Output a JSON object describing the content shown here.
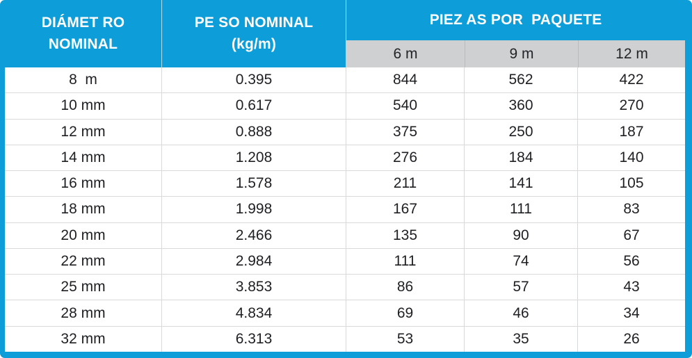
{
  "colors": {
    "accent_blue": "#0D9DD9",
    "subheader_gray": "#CFD0D1",
    "grid_line": "#D8D9DA",
    "header_text": "#FFFFFF",
    "body_text": "#1E1F23",
    "row_background": "#FFFFFF"
  },
  "table": {
    "header": {
      "diameter": "DIÁMET RO\nNOMINAL",
      "weight": "PE SO NOMINAL\n(kg/m)",
      "pieces": "PIEZ AS POR  PAQUETE",
      "lengths": [
        "6 m",
        "9 m",
        "12 m"
      ]
    },
    "rows": [
      [
        "8  m",
        "0.395",
        "844",
        "562",
        "422"
      ],
      [
        "10 mm",
        "0.617",
        "540",
        "360",
        "270"
      ],
      [
        "12 mm",
        "0.888",
        "375",
        "250",
        "187"
      ],
      [
        "14 mm",
        "1.208",
        "276",
        "184",
        "140"
      ],
      [
        "16 mm",
        "1.578",
        "211",
        "141",
        "105"
      ],
      [
        "18 mm",
        "1.998",
        "167",
        "111",
        "83"
      ],
      [
        "20 mm",
        "2.466",
        "135",
        "90",
        "67"
      ],
      [
        "22 mm",
        "2.984",
        "111",
        "74",
        "56"
      ],
      [
        "25 mm",
        "3.853",
        "86",
        "57",
        "43"
      ],
      [
        "28 mm",
        "4.834",
        "69",
        "46",
        "34"
      ],
      [
        "32 mm",
        "6.313",
        "53",
        "35",
        "26"
      ]
    ]
  },
  "chart_data": {
    "type": "table",
    "columns": [
      "DIÁMETRO NOMINAL",
      "PESO NOMINAL (kg/m)",
      "PIEZAS POR PAQUETE 6 m",
      "PIEZAS POR PAQUETE 9 m",
      "PIEZAS POR PAQUETE 12 m"
    ],
    "rows": [
      [
        "8 m",
        0.395,
        844,
        562,
        422
      ],
      [
        "10 mm",
        0.617,
        540,
        360,
        270
      ],
      [
        "12 mm",
        0.888,
        375,
        250,
        187
      ],
      [
        "14 mm",
        1.208,
        276,
        184,
        140
      ],
      [
        "16 mm",
        1.578,
        211,
        141,
        105
      ],
      [
        "18 mm",
        1.998,
        167,
        111,
        83
      ],
      [
        "20 mm",
        2.466,
        135,
        90,
        67
      ],
      [
        "22 mm",
        2.984,
        111,
        74,
        56
      ],
      [
        "25 mm",
        3.853,
        86,
        57,
        43
      ],
      [
        "28 mm",
        4.834,
        69,
        46,
        34
      ],
      [
        "32 mm",
        6.313,
        53,
        35,
        26
      ]
    ],
    "layout": {
      "header_background": "#0D9DD9",
      "subheader_background": "#CFD0D1",
      "grid": true
    }
  }
}
